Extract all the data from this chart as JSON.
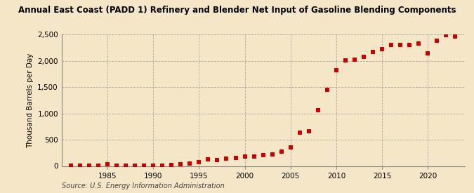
{
  "title": "Annual East Coast (PADD 1) Refinery and Blender Net Input of Gasoline Blending Components",
  "ylabel": "Thousand Barrels per Day",
  "source": "Source: U.S. Energy Information Administration",
  "background_color": "#f5e6c8",
  "marker_color": "#cc0000",
  "years": [
    1981,
    1982,
    1983,
    1984,
    1985,
    1986,
    1987,
    1988,
    1989,
    1990,
    1991,
    1992,
    1993,
    1994,
    1995,
    1996,
    1997,
    1998,
    1999,
    2000,
    2001,
    2002,
    2003,
    2004,
    2005,
    2006,
    2007,
    2008,
    2009,
    2010,
    2011,
    2012,
    2013,
    2014,
    2015,
    2016,
    2017,
    2018,
    2019,
    2020,
    2021,
    2022,
    2023
  ],
  "values": [
    8,
    10,
    8,
    12,
    30,
    8,
    8,
    8,
    8,
    8,
    10,
    20,
    30,
    50,
    80,
    130,
    115,
    145,
    155,
    175,
    180,
    205,
    225,
    280,
    360,
    635,
    665,
    1060,
    1450,
    1820,
    2010,
    2025,
    2080,
    2175,
    2220,
    2300,
    2310,
    2310,
    2330,
    2140,
    2390,
    2490,
    2460
  ],
  "ylim": [
    0,
    2500
  ],
  "yticks": [
    0,
    500,
    1000,
    1500,
    2000,
    2500
  ],
  "ytick_labels": [
    "0",
    "500",
    "1,000",
    "1,500",
    "2,000",
    "2,500"
  ],
  "xticks": [
    1985,
    1990,
    1995,
    2000,
    2005,
    2010,
    2015,
    2020
  ],
  "xlim": [
    1980,
    2024
  ],
  "grid_color": "#999999",
  "grid_style": "--"
}
